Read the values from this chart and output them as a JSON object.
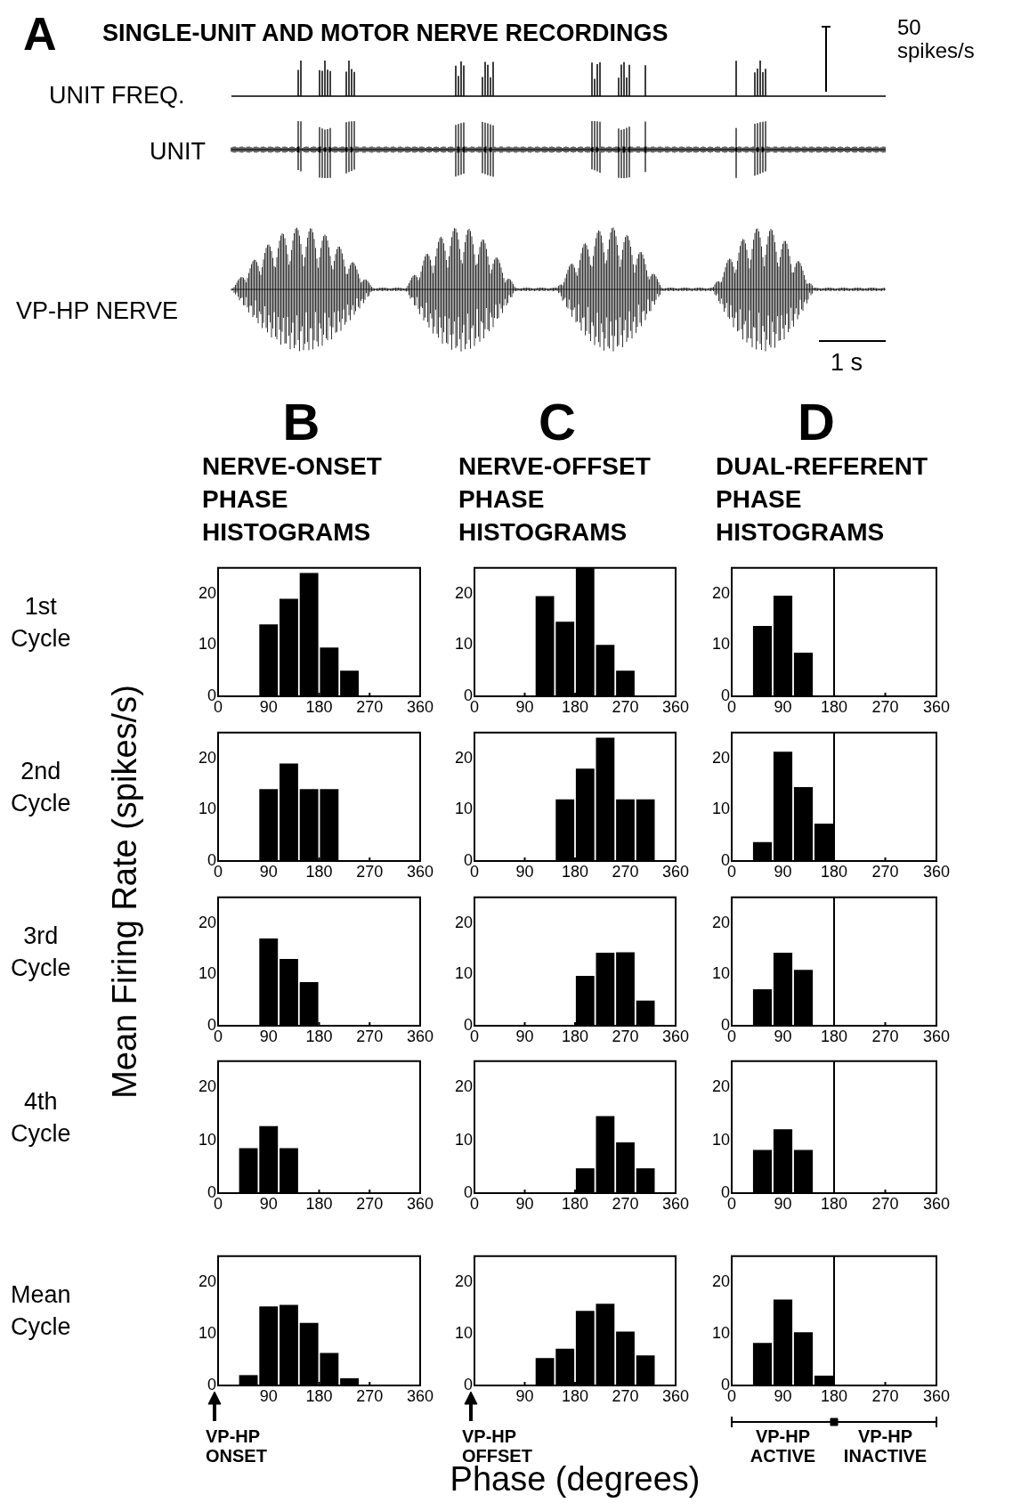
{
  "chart_data": [
    {
      "type": "other",
      "title": "SINGLE-UNIT AND MOTOR NERVE RECORDINGS",
      "annotations": [
        "A",
        "UNIT FREQ.",
        "UNIT",
        "VP-HP NERVE",
        "50\nspikes/s",
        "1 s"
      ]
    },
    {
      "type": "histogram",
      "title": "NERVE-ONSET PHASE HISTOGRAMS",
      "annotations": [
        "B",
        "1st Cycle"
      ],
      "bins": [
        0,
        36,
        72,
        108,
        144,
        180,
        216,
        252,
        288,
        324,
        360
      ],
      "values": [
        0,
        0,
        14,
        19,
        24,
        9.5,
        5,
        0,
        0,
        0
      ],
      "color": "#000000",
      "xlim": [
        0,
        360
      ],
      "xticks": [
        0,
        90,
        180,
        270,
        360
      ],
      "ylim": [
        0,
        25
      ],
      "yticks": [
        0,
        10,
        20
      ]
    },
    {
      "type": "histogram",
      "title": "NERVE-OFFSET PHASE HISTOGRAMS",
      "annotations": [
        "C"
      ],
      "bins": [
        0,
        36,
        72,
        108,
        144,
        180,
        216,
        252,
        288,
        324,
        360
      ],
      "values": [
        0,
        0,
        0,
        19.5,
        14.5,
        25,
        10,
        5,
        0,
        0
      ],
      "color": "#000000",
      "xlim": [
        0,
        360
      ],
      "xticks": [
        0,
        90,
        180,
        270,
        360
      ],
      "ylim": [
        0,
        25
      ],
      "yticks": [
        0,
        10,
        20
      ]
    },
    {
      "type": "histogram",
      "title": "DUAL-REFERENT PHASE HISTOGRAMS",
      "annotations": [
        "D"
      ],
      "bins": [
        0,
        36,
        72,
        108,
        144,
        180,
        216,
        252,
        288,
        324,
        360
      ],
      "values": [
        0,
        13.7,
        19.6,
        8.5,
        0,
        0,
        0,
        0,
        0,
        0
      ],
      "color": "#000000",
      "xlim": [
        0,
        360
      ],
      "xticks": [
        0,
        90,
        180,
        270,
        360
      ],
      "ylim": [
        0,
        25
      ],
      "yticks": [
        0,
        10,
        20
      ],
      "ref_lines": [
        {
          "axis": "x",
          "value": 180
        }
      ]
    },
    {
      "type": "histogram",
      "annotations": [
        "2nd Cycle"
      ],
      "bins": [
        0,
        36,
        72,
        108,
        144,
        180,
        216,
        252,
        288,
        324,
        360
      ],
      "values": [
        0,
        0,
        14,
        19,
        14,
        14,
        0,
        0,
        0,
        0
      ],
      "color": "#000000",
      "xlim": [
        0,
        360
      ],
      "xticks": [
        0,
        90,
        180,
        270,
        360
      ],
      "ylim": [
        0,
        25
      ],
      "yticks": [
        0,
        10,
        20
      ]
    },
    {
      "type": "histogram",
      "bins": [
        0,
        36,
        72,
        108,
        144,
        180,
        216,
        252,
        288,
        324,
        360
      ],
      "values": [
        0,
        0,
        0,
        0,
        12,
        18,
        24,
        12,
        12,
        0
      ],
      "color": "#000000",
      "xlim": [
        0,
        360
      ],
      "xticks": [
        0,
        90,
        180,
        270,
        360
      ],
      "ylim": [
        0,
        25
      ],
      "yticks": [
        0,
        10,
        20
      ]
    },
    {
      "type": "histogram",
      "bins": [
        0,
        36,
        72,
        108,
        144,
        180,
        216,
        252,
        288,
        324,
        360
      ],
      "values": [
        0,
        3.7,
        21.3,
        14.4,
        7.3,
        0,
        0,
        0,
        0,
        0
      ],
      "color": "#000000",
      "xlim": [
        0,
        360
      ],
      "xticks": [
        0,
        90,
        180,
        270,
        360
      ],
      "ylim": [
        0,
        25
      ],
      "yticks": [
        0,
        10,
        20
      ],
      "ref_lines": [
        {
          "axis": "x",
          "value": 180
        }
      ]
    },
    {
      "type": "histogram",
      "annotations": [
        "3rd Cycle"
      ],
      "ylabel": "Mean Firing Rate (spikes/s)",
      "bins": [
        0,
        36,
        72,
        108,
        144,
        180,
        216,
        252,
        288,
        324,
        360
      ],
      "values": [
        0,
        0,
        17,
        13,
        8.5,
        0,
        0,
        0,
        0,
        0
      ],
      "color": "#000000",
      "xlim": [
        0,
        360
      ],
      "xticks": [
        0,
        90,
        180,
        270,
        360
      ],
      "ylim": [
        0,
        25
      ],
      "yticks": [
        0,
        10,
        20
      ]
    },
    {
      "type": "histogram",
      "bins": [
        0,
        36,
        72,
        108,
        144,
        180,
        216,
        252,
        288,
        324,
        360
      ],
      "values": [
        0,
        0,
        0,
        0,
        0,
        9.7,
        14.2,
        14.3,
        4.9,
        0
      ],
      "color": "#000000",
      "xlim": [
        0,
        360
      ],
      "xticks": [
        0,
        90,
        180,
        270,
        360
      ],
      "ylim": [
        0,
        25
      ],
      "yticks": [
        0,
        10,
        20
      ]
    },
    {
      "type": "histogram",
      "bins": [
        0,
        36,
        72,
        108,
        144,
        180,
        216,
        252,
        288,
        324,
        360
      ],
      "values": [
        0,
        7.1,
        14.2,
        10.9,
        0,
        0,
        0,
        0,
        0,
        0
      ],
      "color": "#000000",
      "xlim": [
        0,
        360
      ],
      "xticks": [
        0,
        90,
        180,
        270,
        360
      ],
      "ylim": [
        0,
        25
      ],
      "yticks": [
        0,
        10,
        20
      ],
      "ref_lines": [
        {
          "axis": "x",
          "value": 180
        }
      ]
    },
    {
      "type": "histogram",
      "annotations": [
        "4th Cycle"
      ],
      "bins": [
        0,
        36,
        72,
        108,
        144,
        180,
        216,
        252,
        288,
        324,
        360
      ],
      "values": [
        0,
        8.5,
        12.7,
        8.5,
        0,
        0,
        0,
        0,
        0,
        0
      ],
      "color": "#000000",
      "xlim": [
        0,
        360
      ],
      "xticks": [
        0,
        90,
        180,
        270,
        360
      ],
      "ylim": [
        0,
        25
      ],
      "yticks": [
        0,
        10,
        20
      ]
    },
    {
      "type": "histogram",
      "bins": [
        0,
        36,
        72,
        108,
        144,
        180,
        216,
        252,
        288,
        324,
        360
      ],
      "values": [
        0,
        0,
        0,
        0,
        0,
        4.7,
        14.6,
        9.6,
        4.7,
        0
      ],
      "color": "#000000",
      "xlim": [
        0,
        360
      ],
      "xticks": [
        0,
        90,
        180,
        270,
        360
      ],
      "ylim": [
        0,
        25
      ],
      "yticks": [
        0,
        10,
        20
      ]
    },
    {
      "type": "histogram",
      "bins": [
        0,
        36,
        72,
        108,
        144,
        180,
        216,
        252,
        288,
        324,
        360
      ],
      "values": [
        0,
        8.2,
        12.1,
        8.2,
        0,
        0,
        0,
        0,
        0,
        0
      ],
      "color": "#000000",
      "xlim": [
        0,
        360
      ],
      "xticks": [
        0,
        90,
        180,
        270,
        360
      ],
      "ylim": [
        0,
        25
      ],
      "yticks": [
        0,
        10,
        20
      ],
      "ref_lines": [
        {
          "axis": "x",
          "value": 180
        }
      ]
    },
    {
      "type": "histogram",
      "annotations": [
        "Mean Cycle",
        "VP-HP ONSET"
      ],
      "bins": [
        0,
        36,
        72,
        108,
        144,
        180,
        216,
        252,
        288,
        324,
        360
      ],
      "values": [
        0,
        2,
        15.3,
        15.6,
        12.1,
        6.3,
        1.4,
        0,
        0,
        0
      ],
      "color": "#000000",
      "xlim": [
        0,
        360
      ],
      "xticks": [
        {
          "value": 0,
          "label": null
        },
        90,
        180,
        270,
        360
      ],
      "ylim": [
        0,
        25
      ],
      "yticks": [
        0,
        10,
        20
      ]
    },
    {
      "type": "histogram",
      "annotations": [
        "VP-HP OFFSET"
      ],
      "xlabel": "Phase (degrees)",
      "bins": [
        0,
        36,
        72,
        108,
        144,
        180,
        216,
        252,
        288,
        324,
        360
      ],
      "values": [
        0,
        0,
        0,
        5.3,
        7.1,
        14.4,
        15.8,
        10.4,
        5.8,
        0
      ],
      "color": "#000000",
      "xlim": [
        0,
        360
      ],
      "xticks": [
        {
          "value": 0,
          "label": null
        },
        90,
        180,
        270,
        360
      ],
      "ylim": [
        0,
        25
      ],
      "yticks": [
        0,
        10,
        20
      ]
    },
    {
      "type": "histogram",
      "annotations": [
        "VP-HP ACTIVE",
        "VP-HP INACTIVE"
      ],
      "bins": [
        0,
        36,
        72,
        108,
        144,
        180,
        216,
        252,
        288,
        324,
        360
      ],
      "values": [
        0,
        8.2,
        16.6,
        10.3,
        1.9,
        0,
        0,
        0,
        0,
        0
      ],
      "color": "#000000",
      "xlim": [
        0,
        360
      ],
      "xticks": [
        0,
        90,
        180,
        270,
        360
      ],
      "ylim": [
        0,
        25
      ],
      "yticks": [
        0,
        10,
        20
      ],
      "ref_lines": [
        {
          "axis": "x",
          "value": 180
        }
      ]
    }
  ]
}
